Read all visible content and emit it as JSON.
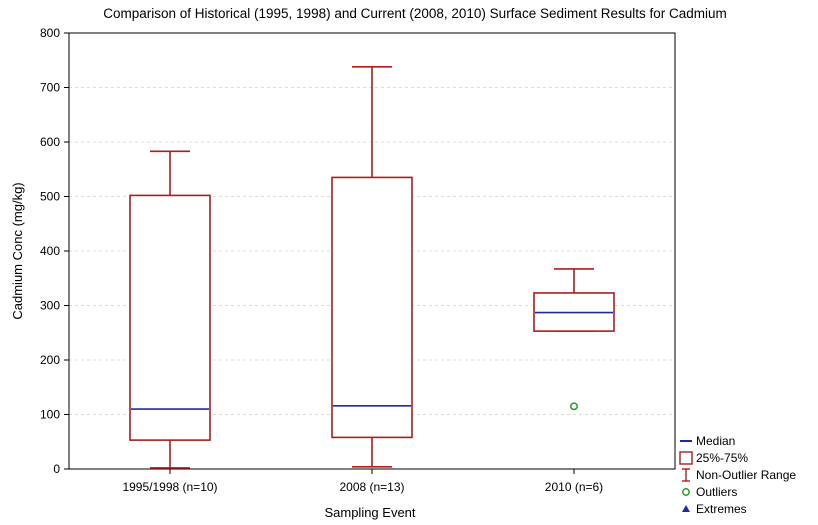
{
  "chart_data": {
    "type": "box",
    "title": "Comparison of Historical (1995, 1998) and Current (2008, 2010) Surface Sediment Results for Cadmium",
    "xlabel": "Sampling Event",
    "ylabel": "Cadmium Conc (mg/kg)",
    "ylim": [
      0,
      800
    ],
    "yticks": [
      0,
      100,
      200,
      300,
      400,
      500,
      600,
      700,
      800
    ],
    "grid": true,
    "legend_position": "bottom-right",
    "categories": [
      "1995/1998 (n=10)",
      "2008 (n=13)",
      "2010 (n=6)"
    ],
    "boxes": [
      {
        "category": "1995/1998 (n=10)",
        "whisker_low": 2,
        "q1": 53,
        "median": 110,
        "q3": 502,
        "whisker_high": 583,
        "outliers": [],
        "extremes": []
      },
      {
        "category": "2008 (n=13)",
        "whisker_low": 4,
        "q1": 58,
        "median": 116,
        "q3": 535,
        "whisker_high": 738,
        "outliers": [],
        "extremes": []
      },
      {
        "category": "2010 (n=6)",
        "whisker_low": 253,
        "q1": 253,
        "median": 287,
        "q3": 323,
        "whisker_high": 367,
        "outliers": [
          115
        ],
        "extremes": []
      }
    ],
    "legend": [
      {
        "key": "median",
        "label": "Median"
      },
      {
        "key": "box",
        "label": "25%-75%"
      },
      {
        "key": "range",
        "label": "Non-Outlier Range"
      },
      {
        "key": "outlier",
        "label": "Outliers"
      },
      {
        "key": "extreme",
        "label": "Extremes"
      }
    ],
    "colors": {
      "box": "#b01c1c",
      "median": "#1f2a9e",
      "outlier": "#2a9a2a",
      "extreme": "#1f2a9e",
      "grid": "#dcdcdc",
      "axis": "#000000"
    }
  }
}
